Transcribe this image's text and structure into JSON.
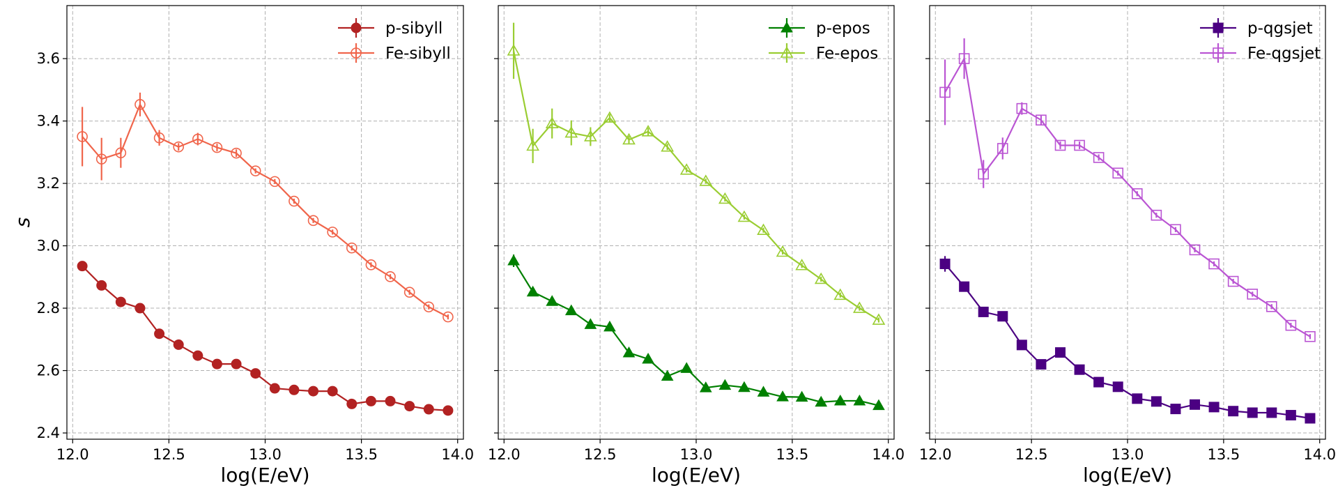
{
  "chart_data": [
    {
      "type": "line",
      "xlabel": "log(E/eV)",
      "ylabel": "s",
      "xlim": [
        11.97,
        14.03
      ],
      "ylim": [
        2.38,
        3.77
      ],
      "xticks": [
        "12.0",
        "12.5",
        "13.0",
        "13.5",
        "14.0"
      ],
      "yticks": [
        "2.4",
        "2.6",
        "2.8",
        "3.0",
        "3.2",
        "3.4",
        "3.6"
      ],
      "grid": true,
      "legend_position": "top-right",
      "x": [
        12.05,
        12.15,
        12.25,
        12.35,
        12.45,
        12.55,
        12.65,
        12.75,
        12.85,
        12.95,
        13.05,
        13.15,
        13.25,
        13.35,
        13.45,
        13.55,
        13.65,
        13.75,
        13.85,
        13.95
      ],
      "series": [
        {
          "name": "p-sibyll",
          "color": "#b22222",
          "marker": "circle",
          "filled": true,
          "values": [
            2.935,
            2.873,
            2.82,
            2.8,
            2.718,
            2.683,
            2.648,
            2.621,
            2.621,
            2.591,
            2.543,
            2.538,
            2.534,
            2.534,
            2.493,
            2.502,
            2.502,
            2.486,
            2.476,
            2.472
          ],
          "errors": [
            0.01,
            0.008,
            0.008,
            0.008,
            0.008,
            0.008,
            0.008,
            0.008,
            0.008,
            0.008,
            0.008,
            0.008,
            0.008,
            0.008,
            0.008,
            0.008,
            0.008,
            0.008,
            0.008,
            0.008
          ]
        },
        {
          "name": "Fe-sibyll",
          "color": "#f0654b",
          "marker": "circle",
          "filled": false,
          "values": [
            3.35,
            3.278,
            3.298,
            3.453,
            3.346,
            3.317,
            3.342,
            3.315,
            3.297,
            3.24,
            3.206,
            3.143,
            3.081,
            3.044,
            2.993,
            2.939,
            2.901,
            2.851,
            2.804,
            2.772
          ],
          "errors": [
            0.095,
            0.068,
            0.048,
            0.038,
            0.025,
            0.012,
            0.02,
            0.012,
            0.012,
            0.008,
            0.008,
            0.008,
            0.008,
            0.008,
            0.008,
            0.008,
            0.008,
            0.008,
            0.008,
            0.008
          ]
        }
      ]
    },
    {
      "type": "line",
      "xlabel": "log(E/eV)",
      "ylabel": "",
      "xlim": [
        11.97,
        14.03
      ],
      "ylim": [
        2.38,
        3.77
      ],
      "xticks": [
        "12.0",
        "12.5",
        "13.0",
        "13.5",
        "14.0"
      ],
      "yticks": [],
      "grid": true,
      "legend_position": "top-right",
      "x": [
        12.05,
        12.15,
        12.25,
        12.35,
        12.45,
        12.55,
        12.65,
        12.75,
        12.85,
        12.95,
        13.05,
        13.15,
        13.25,
        13.35,
        13.45,
        13.55,
        13.65,
        13.75,
        13.85,
        13.95
      ],
      "series": [
        {
          "name": "p-epos",
          "color": "#008000",
          "marker": "triangle",
          "filled": true,
          "values": [
            2.952,
            2.852,
            2.822,
            2.792,
            2.748,
            2.74,
            2.657,
            2.637,
            2.582,
            2.607,
            2.545,
            2.553,
            2.546,
            2.531,
            2.516,
            2.515,
            2.499,
            2.503,
            2.503,
            2.488
          ],
          "errors": [
            0.02,
            0.008,
            0.008,
            0.008,
            0.008,
            0.008,
            0.008,
            0.008,
            0.008,
            0.008,
            0.008,
            0.008,
            0.008,
            0.008,
            0.008,
            0.008,
            0.008,
            0.008,
            0.008,
            0.008
          ]
        },
        {
          "name": "Fe-epos",
          "color": "#9acd32",
          "marker": "triangle",
          "filled": false,
          "values": [
            3.625,
            3.32,
            3.392,
            3.362,
            3.35,
            3.41,
            3.34,
            3.366,
            3.317,
            3.243,
            3.207,
            3.15,
            3.092,
            3.05,
            2.98,
            2.937,
            2.893,
            2.842,
            2.8,
            2.762
          ],
          "errors": [
            0.09,
            0.055,
            0.048,
            0.04,
            0.03,
            0.012,
            0.012,
            0.012,
            0.01,
            0.008,
            0.008,
            0.008,
            0.008,
            0.008,
            0.008,
            0.008,
            0.008,
            0.008,
            0.008,
            0.008
          ]
        }
      ]
    },
    {
      "type": "line",
      "xlabel": "log(E/eV)",
      "ylabel": "",
      "xlim": [
        11.97,
        14.03
      ],
      "ylim": [
        2.38,
        3.77
      ],
      "xticks": [
        "12.0",
        "12.5",
        "13.0",
        "13.5",
        "14.0"
      ],
      "yticks": [],
      "grid": true,
      "legend_position": "top-right",
      "x": [
        12.05,
        12.15,
        12.25,
        12.35,
        12.45,
        12.55,
        12.65,
        12.75,
        12.85,
        12.95,
        13.05,
        13.15,
        13.25,
        13.35,
        13.45,
        13.55,
        13.65,
        13.75,
        13.85,
        13.95
      ],
      "series": [
        {
          "name": "p-qgsjet",
          "color": "#4b0082",
          "marker": "square",
          "filled": true,
          "values": [
            2.942,
            2.869,
            2.788,
            2.774,
            2.682,
            2.62,
            2.658,
            2.603,
            2.563,
            2.548,
            2.51,
            2.501,
            2.477,
            2.491,
            2.483,
            2.47,
            2.465,
            2.465,
            2.457,
            2.447
          ],
          "errors": [
            0.025,
            0.01,
            0.008,
            0.008,
            0.008,
            0.008,
            0.008,
            0.008,
            0.008,
            0.008,
            0.008,
            0.008,
            0.008,
            0.008,
            0.008,
            0.008,
            0.008,
            0.008,
            0.008,
            0.008
          ]
        },
        {
          "name": "Fe-qgsjet",
          "color": "#ba55d3",
          "marker": "square",
          "filled": false,
          "values": [
            3.492,
            3.6,
            3.23,
            3.312,
            3.44,
            3.403,
            3.322,
            3.322,
            3.283,
            3.233,
            3.167,
            3.098,
            3.052,
            2.987,
            2.942,
            2.886,
            2.845,
            2.805,
            2.745,
            2.709
          ],
          "errors": [
            0.105,
            0.065,
            0.045,
            0.035,
            0.02,
            0.015,
            0.012,
            0.012,
            0.01,
            0.008,
            0.008,
            0.008,
            0.008,
            0.008,
            0.008,
            0.008,
            0.008,
            0.008,
            0.008,
            0.008
          ]
        }
      ]
    }
  ]
}
